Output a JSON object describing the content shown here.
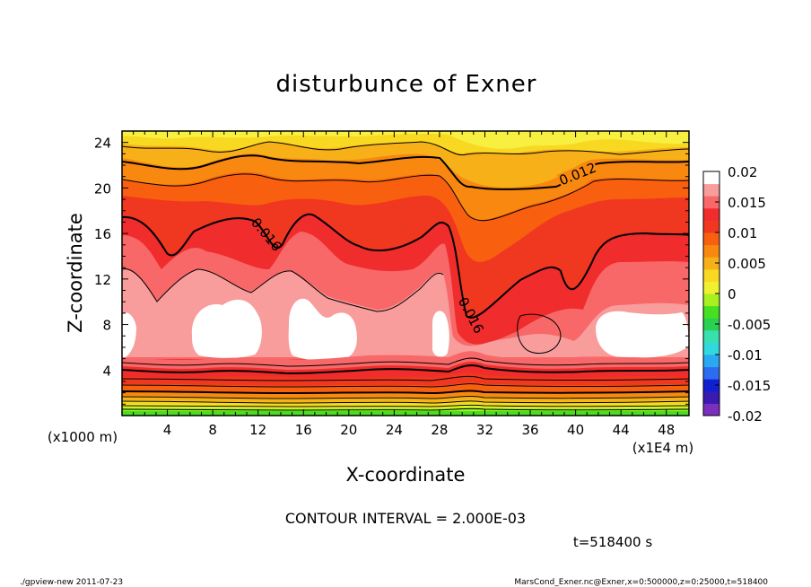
{
  "chart_data": {
    "type": "heatmap",
    "title": "disturbunce of Exner",
    "xlabel": "X-coordinate",
    "ylabel": "Z-coordinate",
    "x_unit_label": "(x1000 m)",
    "x_scale_label": "(x1E4 m)",
    "xlim": [
      0,
      50
    ],
    "ylim": [
      0,
      25
    ],
    "x_ticks": [
      "4",
      "8",
      "12",
      "16",
      "20",
      "24",
      "28",
      "32",
      "36",
      "40",
      "44",
      "48"
    ],
    "y_ticks": [
      "4",
      "8",
      "12",
      "16",
      "20",
      "24"
    ],
    "contour_labels": [
      "0.012",
      "0.016",
      "0.016"
    ],
    "colorbar": {
      "labels": [
        "0.02",
        "0.015",
        "0.01",
        "0.005",
        "0",
        "-0.005",
        "-0.01",
        "-0.015",
        "-0.02"
      ],
      "min": -0.02,
      "max": 0.02,
      "colors": [
        "#7b2fbf",
        "#3a1ab0",
        "#1020d0",
        "#2c6cf0",
        "#2aa8f0",
        "#30d8e0",
        "#38e0b0",
        "#2ad050",
        "#46e020",
        "#a8f020",
        "#f0f030",
        "#f8d820",
        "#f8b018",
        "#f88810",
        "#f86010",
        "#f03820",
        "#f02c2c",
        "#f86868",
        "#f89c9c",
        "#ffffff"
      ]
    }
  },
  "annotations": {
    "contour_interval": "CONTOUR INTERVAL = 2.000E-03",
    "time": "t=518400 s",
    "footer_left": "./gpview-new   2011-07-23",
    "footer_right": "MarsCond_Exner.nc@Exner,x=0:500000,z=0:25000,t=518400"
  }
}
